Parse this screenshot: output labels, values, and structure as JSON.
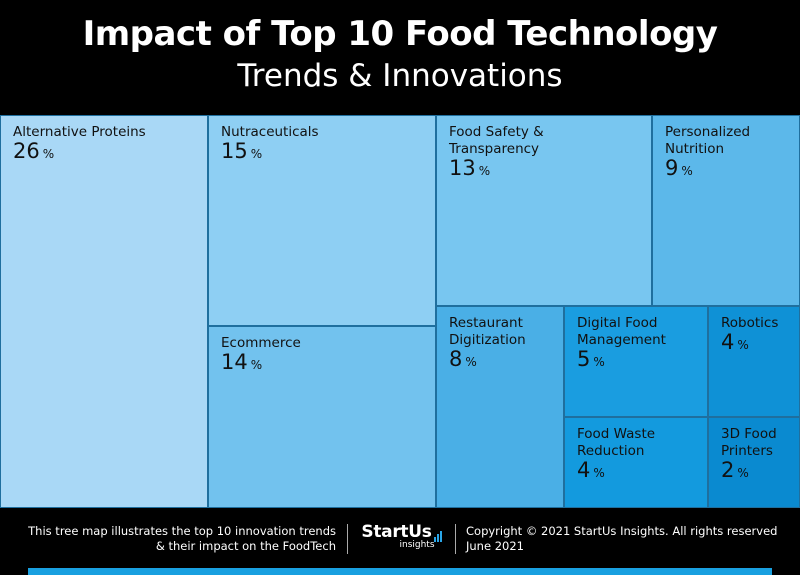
{
  "header": {
    "title": "Impact of Top 10 Food Technology",
    "subtitle": "Trends & Innovations"
  },
  "chart_data": {
    "type": "treemap",
    "title": "Impact of Top 10 Food Technology",
    "subtitle": "Trends & Innovations",
    "unit": "%",
    "items": [
      {
        "label": "Alternative Proteins",
        "value": 26,
        "color": "#a9d8f6"
      },
      {
        "label": "Nutraceuticals",
        "value": 15,
        "color": "#8ecff3"
      },
      {
        "label": "Ecommerce",
        "value": 14,
        "color": "#72c2ee"
      },
      {
        "label": "Food Safety & Transparency",
        "value": 13,
        "color": "#78c6f0"
      },
      {
        "label": "Personalized Nutrition",
        "value": 9,
        "color": "#5cb8ea"
      },
      {
        "label": "Restaurant Digitization",
        "value": 8,
        "color": "#4aafe6"
      },
      {
        "label": "Digital Food Management",
        "value": 5,
        "color": "#1a9de0"
      },
      {
        "label": "Food Waste Reduction",
        "value": 4,
        "color": "#139ade"
      },
      {
        "label": "Robotics",
        "value": 4,
        "color": "#0f91d6"
      },
      {
        "label": "3D Food Printers",
        "value": 2,
        "color": "#0a8ad0"
      }
    ]
  },
  "footer": {
    "left_line1": "This tree map illustrates the top 10 innovation trends",
    "left_line2": "& their impact on the FoodTech",
    "logo_main": "StartUs",
    "logo_sub": "insights",
    "right_line1": "Copyright © 2021 StartUs Insights. All rights reserved",
    "right_line2": "June 2021"
  },
  "colors": {
    "background": "#000000",
    "accent": "#19a0e0"
  }
}
